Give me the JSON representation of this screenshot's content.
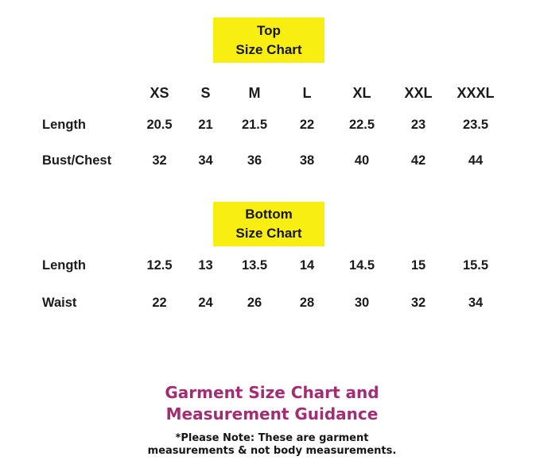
{
  "colors": {
    "highlight_yellow": "#F8EE12",
    "heading_magenta": "#A52C73",
    "text_black": "#1B1B1B",
    "background": "#FFFFFF"
  },
  "top_chart": {
    "title": [
      "Top",
      "Size Chart"
    ],
    "sizes": [
      "XS",
      "S",
      "M",
      "L",
      "XL",
      "XXL",
      "XXXL"
    ],
    "rows": [
      {
        "label": "Length",
        "values": [
          "20.5",
          "21",
          "21.5",
          "22",
          "22.5",
          "23",
          "23.5"
        ]
      },
      {
        "label": "Bust/Chest",
        "values": [
          "32",
          "34",
          "36",
          "38",
          "40",
          "42",
          "44"
        ]
      }
    ]
  },
  "bottom_chart": {
    "title": [
      "Bottom",
      "Size Chart"
    ],
    "rows": [
      {
        "label": "Length",
        "values": [
          "12.5",
          "13",
          "13.5",
          "14",
          "14.5",
          "15",
          "15.5"
        ]
      },
      {
        "label": "Waist",
        "values": [
          "22",
          "24",
          "26",
          "28",
          "30",
          "32",
          "34"
        ]
      }
    ]
  },
  "footer": {
    "heading": [
      "Garment Size Chart and",
      "Measurement Guidance"
    ],
    "note": [
      "*Please Note: These are garment",
      "measurements & not body measurements."
    ]
  },
  "chart_data": [
    {
      "type": "table",
      "title": "Top Size Chart",
      "columns": [
        "",
        "XS",
        "S",
        "M",
        "L",
        "XL",
        "XXL",
        "XXXL"
      ],
      "rows": [
        [
          "Length",
          20.5,
          21,
          21.5,
          22,
          22.5,
          23,
          23.5
        ],
        [
          "Bust/Chest",
          32,
          34,
          36,
          38,
          40,
          42,
          44
        ]
      ]
    },
    {
      "type": "table",
      "title": "Bottom Size Chart",
      "columns": [
        "",
        "XS",
        "S",
        "M",
        "L",
        "XL",
        "XXL",
        "XXXL"
      ],
      "rows": [
        [
          "Length",
          12.5,
          13,
          13.5,
          14,
          14.5,
          15,
          15.5
        ],
        [
          "Waist",
          22,
          24,
          26,
          28,
          30,
          32,
          34
        ]
      ]
    }
  ]
}
